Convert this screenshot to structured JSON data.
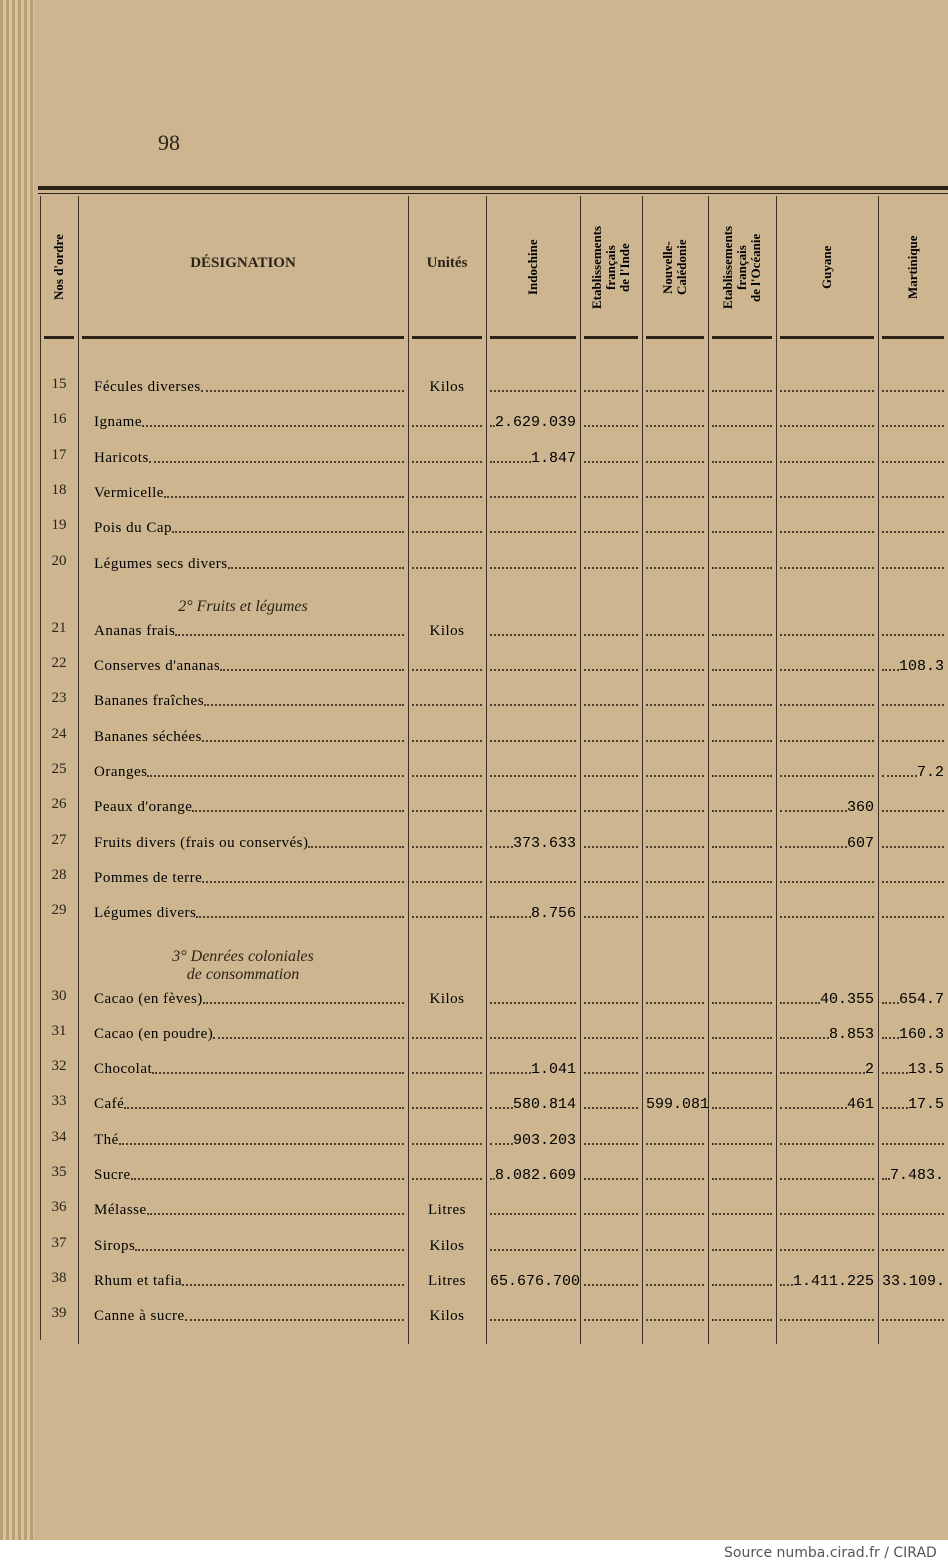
{
  "page_number": "98",
  "table": {
    "headers": [
      "Nos d'ordre",
      "DÉSIGNATION",
      "Unités",
      "Indochine",
      "Etablissements\nfrançais\nde l'Inde",
      "Nouvelle-\nCalédonie",
      "Etablissements\nfrançais\nde l'Océanie",
      "Guyane",
      "Martinique"
    ],
    "rows": [
      {
        "cells": [
          "15",
          "Fécules diverses",
          "Kilos",
          null,
          null,
          null,
          null,
          null,
          null
        ]
      },
      {
        "cells": [
          "16",
          "Igname",
          null,
          "2.629.039",
          null,
          null,
          null,
          null,
          null
        ]
      },
      {
        "cells": [
          "17",
          "Haricots",
          null,
          "1.847",
          null,
          null,
          null,
          null,
          null
        ]
      },
      {
        "cells": [
          "18",
          "Vermicelle",
          null,
          null,
          null,
          null,
          null,
          null,
          null
        ]
      },
      {
        "cells": [
          "19",
          "Pois du Cap",
          null,
          null,
          null,
          null,
          null,
          null,
          null
        ]
      },
      {
        "cells": [
          "20",
          "Légumes secs divers",
          null,
          null,
          null,
          null,
          null,
          null,
          null
        ]
      },
      {
        "heading": "2° Fruits et légumes"
      },
      {
        "cells": [
          "21",
          "Ananas frais",
          "Kilos",
          null,
          null,
          null,
          null,
          null,
          null
        ]
      },
      {
        "cells": [
          "22",
          "Conserves d'ananas",
          null,
          null,
          null,
          null,
          null,
          null,
          "108.3"
        ]
      },
      {
        "cells": [
          "23",
          "Bananes fraîches",
          null,
          null,
          null,
          null,
          null,
          null,
          null
        ]
      },
      {
        "cells": [
          "24",
          "Bananes séchées",
          null,
          null,
          null,
          null,
          null,
          null,
          null
        ]
      },
      {
        "cells": [
          "25",
          "Oranges",
          null,
          null,
          null,
          null,
          null,
          null,
          "7.2"
        ]
      },
      {
        "cells": [
          "26",
          "Peaux d'orange",
          null,
          null,
          null,
          null,
          null,
          "360",
          null
        ]
      },
      {
        "cells": [
          "27",
          "Fruits divers (frais ou conservés)",
          null,
          "373.633",
          null,
          null,
          null,
          "607",
          null
        ]
      },
      {
        "cells": [
          "28",
          "Pommes de terre",
          null,
          null,
          null,
          null,
          null,
          null,
          null
        ]
      },
      {
        "cells": [
          "29",
          "Légumes divers",
          null,
          "8.756",
          null,
          null,
          null,
          null,
          null
        ]
      },
      {
        "heading": "3° Denrées coloniales\nde consommation"
      },
      {
        "cells": [
          "30",
          "Cacao (en fèves)",
          "Kilos",
          null,
          null,
          null,
          null,
          "40.355",
          "654.7"
        ]
      },
      {
        "cells": [
          "31",
          "Cacao (en poudre)",
          null,
          null,
          null,
          null,
          null,
          "8.853",
          "160.3"
        ]
      },
      {
        "cells": [
          "32",
          "Chocolat",
          null,
          "1.041",
          null,
          null,
          null,
          "2",
          "13.5"
        ]
      },
      {
        "cells": [
          "33",
          "Café",
          null,
          "580.814",
          null,
          "599.081",
          null,
          "461",
          "17.5"
        ]
      },
      {
        "cells": [
          "34",
          "Thé",
          null,
          "903.203",
          null,
          null,
          null,
          null,
          null
        ]
      },
      {
        "cells": [
          "35",
          "Sucre",
          null,
          "8.082.609",
          null,
          null,
          null,
          null,
          "7.483."
        ]
      },
      {
        "cells": [
          "36",
          "Mélasse",
          "Litres",
          null,
          null,
          null,
          null,
          null,
          null
        ]
      },
      {
        "cells": [
          "37",
          "Sirops",
          "Kilos",
          null,
          null,
          null,
          null,
          null,
          null
        ]
      },
      {
        "cells": [
          "38",
          "Rhum et tafia",
          "Litres",
          "65.676.700",
          null,
          null,
          null,
          "1.411.225",
          "33.109."
        ]
      },
      {
        "cells": [
          "39",
          "Canne à sucre",
          "Kilos",
          null,
          null,
          null,
          null,
          null,
          null
        ]
      }
    ]
  },
  "source": "Source numba.cirad.fr / CIRAD"
}
